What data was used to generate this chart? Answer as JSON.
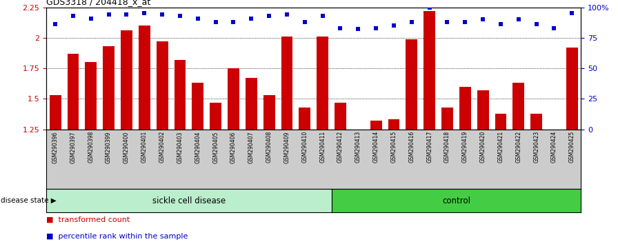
{
  "title": "GDS3318 / 204418_x_at",
  "samples": [
    "GSM290396",
    "GSM290397",
    "GSM290398",
    "GSM290399",
    "GSM290400",
    "GSM290401",
    "GSM290402",
    "GSM290403",
    "GSM290404",
    "GSM290405",
    "GSM290406",
    "GSM290407",
    "GSM290408",
    "GSM290409",
    "GSM290410",
    "GSM290411",
    "GSM290412",
    "GSM290413",
    "GSM290414",
    "GSM290415",
    "GSM290416",
    "GSM290417",
    "GSM290418",
    "GSM290419",
    "GSM290420",
    "GSM290421",
    "GSM290422",
    "GSM290423",
    "GSM290424",
    "GSM290425"
  ],
  "bar_values": [
    1.53,
    1.87,
    1.8,
    1.93,
    2.06,
    2.1,
    1.97,
    1.82,
    1.63,
    1.47,
    1.75,
    1.67,
    1.53,
    2.01,
    1.43,
    2.01,
    1.47,
    1.25,
    1.32,
    1.33,
    1.99,
    2.22,
    1.43,
    1.6,
    1.57,
    1.38,
    1.63,
    1.38,
    1.25,
    1.92
  ],
  "percentile_values": [
    86,
    93,
    91,
    94,
    94,
    95,
    94,
    93,
    91,
    88,
    88,
    91,
    93,
    94,
    88,
    93,
    83,
    82,
    83,
    85,
    88,
    100,
    88,
    88,
    90,
    86,
    90,
    86,
    83,
    95
  ],
  "sickle_count": 16,
  "control_count": 14,
  "ymin": 1.25,
  "ymax": 2.25,
  "yticks_left": [
    1.25,
    1.5,
    1.75,
    2.0,
    2.25
  ],
  "ytick_labels_left": [
    "1.25",
    "1.5",
    "1.75",
    "2",
    "2.25"
  ],
  "yticks_right_vals": [
    0,
    25,
    50,
    75,
    100
  ],
  "ytick_labels_right": [
    "0",
    "25",
    "50",
    "75",
    "100%"
  ],
  "bar_color": "#cc0000",
  "dot_color": "#0000cc",
  "sickle_fill": "#bbeecc",
  "control_fill": "#44cc44",
  "label_bg": "#cccccc",
  "legend_bar_label": "transformed count",
  "legend_dot_label": "percentile rank within the sample",
  "sickle_label": "sickle cell disease",
  "control_label": "control",
  "disease_state_label": "disease state"
}
